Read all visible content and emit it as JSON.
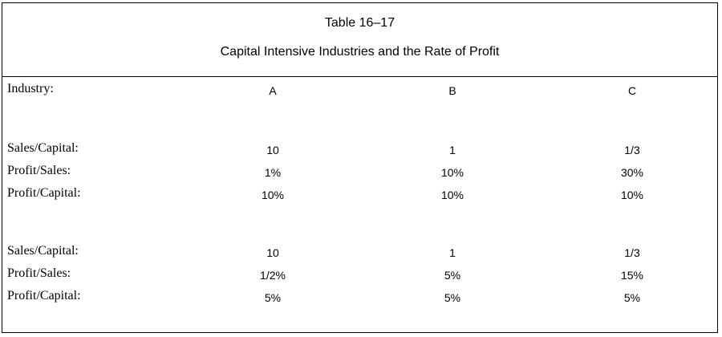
{
  "table": {
    "number": "Table 16–17",
    "title": "Capital Intensive Industries and the Rate of Profit",
    "header": {
      "label": "Industry:",
      "columns": [
        "A",
        "B",
        "C"
      ]
    },
    "scenario1": {
      "rows": [
        {
          "label": "Sales/Capital:",
          "values": [
            "10",
            "1",
            "1/3"
          ]
        },
        {
          "label": "Profit/Sales:",
          "values": [
            "1%",
            "10%",
            "30%"
          ]
        },
        {
          "label": "Profit/Capital:",
          "values": [
            "10%",
            "10%",
            "10%"
          ]
        }
      ]
    },
    "scenario2": {
      "rows": [
        {
          "label": "Sales/Capital:",
          "values": [
            "10",
            "1",
            "1/3"
          ]
        },
        {
          "label": "Profit/Sales:",
          "values": [
            "1/2%",
            "5%",
            "15%"
          ]
        },
        {
          "label": "Profit/Capital:",
          "values": [
            "5%",
            "5%",
            "5%"
          ]
        }
      ]
    }
  }
}
